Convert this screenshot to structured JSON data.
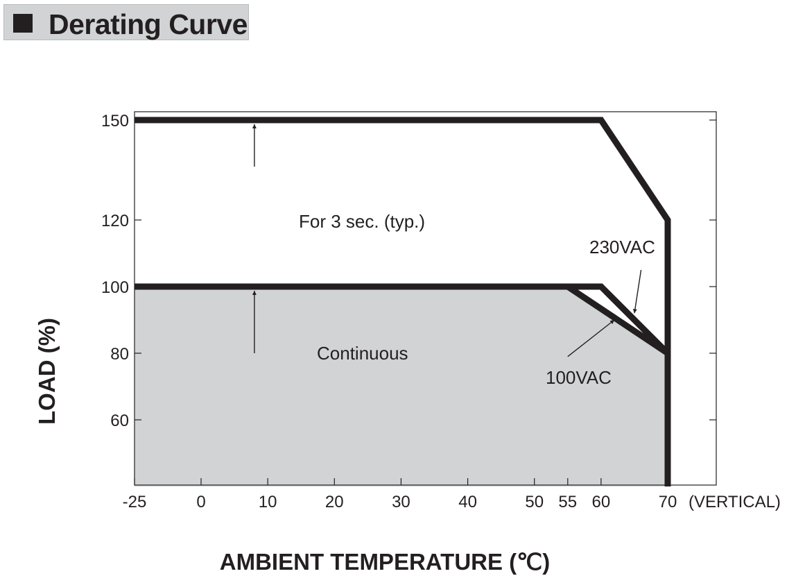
{
  "title": "Derating Curve",
  "chart_data": {
    "type": "line",
    "xlabel": "AMBIENT TEMPERATURE (℃)",
    "ylabel": "LOAD (%)",
    "x_suffix": "(VERTICAL)",
    "xlim": [
      -25,
      80
    ],
    "ylim": [
      40,
      160
    ],
    "x_ticks": [
      -25,
      0,
      10,
      20,
      30,
      40,
      50,
      55,
      60,
      70
    ],
    "y_ticks": [
      60,
      80,
      100,
      120,
      150
    ],
    "grid": false,
    "colors": {
      "line": "#231f20",
      "fill": "#d1d3d4"
    },
    "series": [
      {
        "points": [
          [
            -25,
            150
          ],
          [
            60,
            150
          ],
          [
            70,
            120
          ],
          [
            70,
            40
          ]
        ]
      },
      {
        "points": [
          [
            -25,
            100
          ],
          [
            60,
            100
          ],
          [
            70,
            80
          ]
        ]
      },
      {
        "points": [
          [
            -25,
            100
          ],
          [
            55,
            100
          ],
          [
            70,
            80
          ],
          [
            70,
            40
          ]
        ]
      }
    ],
    "shaded_region": [
      [
        -25,
        40
      ],
      [
        -25,
        100
      ],
      [
        55,
        100
      ],
      [
        70,
        80
      ],
      [
        70,
        40
      ]
    ],
    "annotations": [
      {
        "text": "For 3 sec. (typ.)",
        "arrow_to": [
          8,
          150
        ],
        "arrow_from": [
          8,
          136
        ]
      },
      {
        "text": "Continuous",
        "arrow_to": [
          8,
          100
        ],
        "arrow_from": [
          8,
          80
        ]
      },
      {
        "text": "230VAC",
        "arrow_to": [
          65,
          92
        ],
        "arrow_from": [
          66,
          105
        ]
      },
      {
        "text": "100VAC",
        "arrow_to": [
          62,
          90
        ],
        "arrow_from": [
          55,
          79
        ]
      }
    ]
  }
}
